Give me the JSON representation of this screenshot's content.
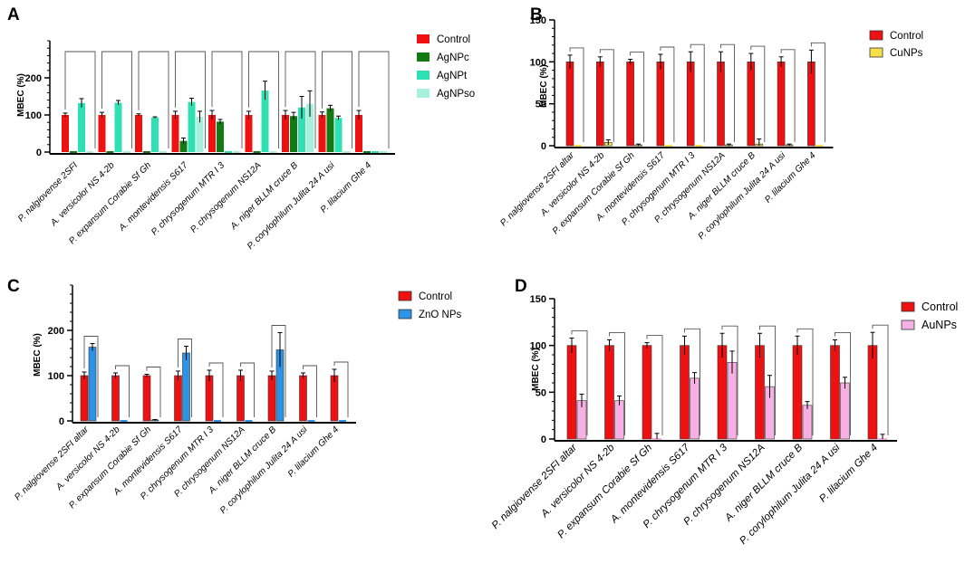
{
  "figure": {
    "panels": [
      "A",
      "B",
      "C",
      "D"
    ]
  },
  "colors": {
    "control": "#ee1111",
    "agnpc": "#137a13",
    "agnpt": "#2fe0b2",
    "agnpso": "#a6f0dc",
    "cunps": "#f7e04a",
    "zno": "#2d93e6",
    "aunps": "#f6b0e4",
    "axis": "#000000"
  },
  "chart_data": [
    {
      "panel": "A",
      "type": "bar",
      "ylabel": "MBEC (%)",
      "yticks": [
        0,
        100,
        200
      ],
      "ylim": [
        0,
        300
      ],
      "categories": [
        "P. nalgiovense 2SFI",
        "A. versicolor NS 4-2b",
        "P. expansum Corabie Sf Gh",
        "A. montevidensis S617",
        "P. chrysogenum MTR I 3",
        "P. chrysogenum NS12A",
        "A. niger BLLM cruce B",
        "P. corylophilum Julita 24 A usi",
        "P. lilacium Ghe 4"
      ],
      "series": [
        {
          "name": "Control",
          "color_key": "control",
          "values": [
            100,
            100,
            100,
            100,
            100,
            100,
            100,
            100,
            100
          ],
          "errors": [
            5,
            7,
            3,
            10,
            12,
            10,
            12,
            8,
            12
          ]
        },
        {
          "name": "AgNPc",
          "color_key": "agnpc",
          "values": [
            0,
            0,
            0,
            30,
            82,
            0,
            97,
            118,
            0
          ],
          "errors": [
            0,
            0,
            0,
            8,
            6,
            0,
            10,
            8,
            0
          ]
        },
        {
          "name": "AgNPt",
          "color_key": "agnpt",
          "values": [
            132,
            133,
            93,
            135,
            0,
            166,
            120,
            92,
            0
          ],
          "errors": [
            12,
            6,
            2,
            10,
            0,
            25,
            30,
            5,
            0
          ]
        },
        {
          "name": "AgNPso",
          "color_key": "agnpso",
          "values": [
            0,
            0,
            0,
            95,
            0,
            0,
            130,
            0,
            0
          ],
          "errors": [
            0,
            0,
            0,
            15,
            0,
            0,
            35,
            0,
            0
          ]
        }
      ],
      "legend": [
        "Control",
        "AgNPc",
        "AgNPt",
        "AgNPso"
      ]
    },
    {
      "panel": "B",
      "type": "bar",
      "ylabel": "MBEC (%)",
      "yticks": [
        0,
        50,
        100,
        150
      ],
      "ylim": [
        0,
        150
      ],
      "categories": [
        "P. nalgiovense 2SFI altar",
        "A. versicolor NS 4-2b",
        "P. expansum Corabie Sf Gh",
        "A. montevidensis S617",
        "P. chrysogenum MTR I 3",
        "P. chrysogenum NS12A",
        "A. niger BLLM cruce B",
        "P. corylophilum Julita 24 A usi",
        "P. lilacium Ghe 4"
      ],
      "series": [
        {
          "name": "Control",
          "color_key": "control",
          "values": [
            100,
            100,
            100,
            100,
            100,
            100,
            100,
            100,
            100
          ],
          "errors": [
            8,
            6,
            3,
            9,
            12,
            12,
            10,
            6,
            14
          ]
        },
        {
          "name": "CuNPs",
          "color_key": "cunps",
          "values": [
            0,
            4,
            1,
            0,
            0,
            1,
            2,
            1,
            0
          ],
          "errors": [
            0,
            3,
            1,
            0,
            0,
            1,
            6,
            1,
            0
          ]
        }
      ],
      "legend": [
        "Control",
        "CuNPs"
      ]
    },
    {
      "panel": "C",
      "type": "bar",
      "ylabel": "MBEC (%)",
      "yticks": [
        0,
        100,
        200
      ],
      "ylim": [
        0,
        300
      ],
      "categories": [
        "P. nalgiovense 2SFI altar",
        "A. versicolor NS 4-2b",
        "P. expansum Corabie Sf Gh",
        "A. montevidensis S617",
        "P. chrysogenum MTR I 3",
        "P. chrysogenum NS12A",
        "A. niger BLLM cruce B",
        "P. corylophilum Julita 24 A usi",
        "P. lilacium Ghe 4"
      ],
      "series": [
        {
          "name": "Control",
          "color_key": "control",
          "values": [
            100,
            100,
            100,
            100,
            100,
            100,
            100,
            100,
            100
          ],
          "errors": [
            8,
            6,
            3,
            10,
            12,
            12,
            10,
            6,
            14
          ]
        },
        {
          "name": "ZnO NPs",
          "color_key": "zno",
          "values": [
            163,
            0,
            2,
            150,
            0,
            0,
            157,
            0,
            0
          ],
          "errors": [
            8,
            0,
            1,
            15,
            0,
            0,
            38,
            0,
            0
          ]
        }
      ],
      "legend": [
        "Control",
        "ZnO NPs"
      ]
    },
    {
      "panel": "D",
      "type": "bar",
      "ylabel": "MBEC (%)",
      "yticks": [
        0,
        50,
        100,
        150
      ],
      "ylim": [
        0,
        150
      ],
      "categories": [
        "P. nalgiovense 2SFI altar",
        "A. versicolor NS 4-2b",
        "P. expansum Corabie Sf Gh",
        "A. montevidensis S617",
        "P. chrysogenum MTR I 3",
        "P. chrysogenum NS12A",
        "A. niger BLLM cruce B",
        "P. corylophilum Julita 24 A usi",
        "P. lilacium Ghe 4"
      ],
      "series": [
        {
          "name": "Control",
          "color_key": "control",
          "values": [
            100,
            100,
            100,
            100,
            100,
            100,
            100,
            100,
            100
          ],
          "errors": [
            8,
            6,
            3,
            10,
            13,
            13,
            10,
            6,
            14
          ]
        },
        {
          "name": "AuNPs",
          "color_key": "aunps",
          "values": [
            41,
            41,
            0,
            65,
            82,
            56,
            36,
            60,
            0
          ],
          "errors": [
            7,
            5,
            6,
            6,
            12,
            12,
            4,
            6,
            5
          ]
        }
      ],
      "legend": [
        "Control",
        "AuNPs"
      ]
    }
  ]
}
